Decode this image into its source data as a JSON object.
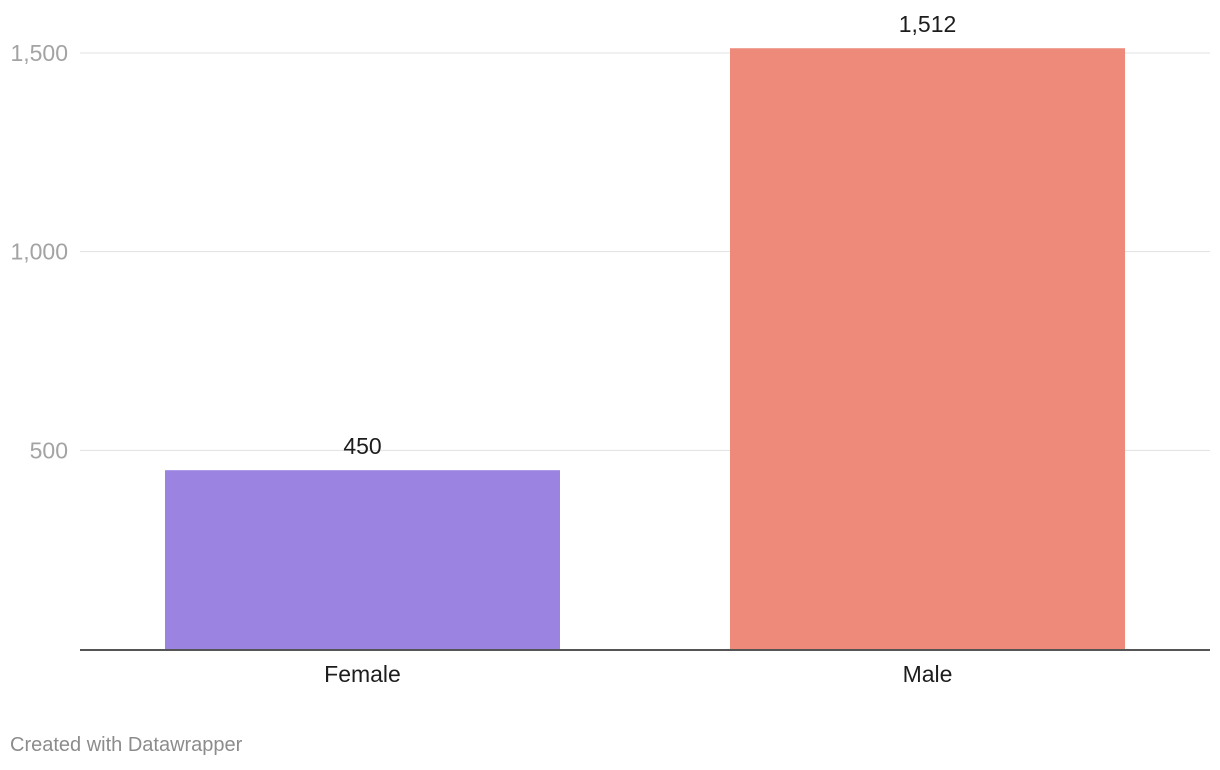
{
  "chart_data": {
    "type": "bar",
    "categories": [
      "Female",
      "Male"
    ],
    "values": [
      450,
      1512
    ],
    "value_labels": [
      "450",
      "1,512"
    ],
    "colors": [
      "#9b83e2",
      "#ed8a7a"
    ],
    "ylim": [
      0,
      1500
    ],
    "yticks": [
      500,
      1000,
      1500
    ],
    "ytick_labels": [
      "500",
      "1,000",
      "1,500"
    ],
    "grid": true,
    "title": "",
    "xlabel": "",
    "ylabel": ""
  },
  "footer": {
    "credit": "Created with Datawrapper"
  }
}
